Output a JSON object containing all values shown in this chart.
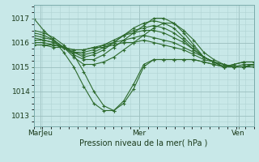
{
  "bg_color": "#c8e8e8",
  "plot_bg_color": "#c8e8e8",
  "line_color": "#2d6a2d",
  "grid_major_color": "#9bbfbf",
  "grid_minor_color": "#b0d4d4",
  "xlabel": "Pression niveau de la mer( hPa )",
  "yticks": [
    1013,
    1014,
    1015,
    1016,
    1017
  ],
  "ylim": [
    1012.55,
    1017.55
  ],
  "xlim": [
    0.0,
    1.0
  ],
  "xtick_labels": [
    "MarJeu",
    "Mer",
    "Ven"
  ],
  "xtick_positions": [
    0.03,
    0.48,
    0.93
  ],
  "series": [
    [
      1017.0,
      1016.5,
      1016.1,
      1015.6,
      1015.0,
      1014.2,
      1013.5,
      1013.2,
      1013.2,
      1013.6,
      1014.3,
      1015.1,
      1015.3,
      1015.3,
      1015.3,
      1015.3,
      1015.3,
      1015.2,
      1015.1,
      1015.0,
      1015.1,
      1015.2,
      1015.2
    ],
    [
      1016.5,
      1016.4,
      1016.2,
      1015.9,
      1015.5,
      1014.8,
      1014.0,
      1013.4,
      1013.2,
      1013.5,
      1014.1,
      1015.0,
      1015.3,
      1015.3,
      1015.3,
      1015.3,
      1015.3,
      1015.2,
      1015.1,
      1015.0,
      1015.1,
      1015.2,
      1015.2
    ],
    [
      1016.4,
      1016.3,
      1016.1,
      1015.8,
      1015.4,
      1015.1,
      1015.1,
      1015.2,
      1015.4,
      1015.7,
      1016.0,
      1016.3,
      1016.6,
      1016.8,
      1016.8,
      1016.5,
      1016.1,
      1015.6,
      1015.3,
      1015.1,
      1015.0,
      1015.0,
      1015.1
    ],
    [
      1016.3,
      1016.2,
      1016.1,
      1015.8,
      1015.5,
      1015.3,
      1015.3,
      1015.5,
      1015.8,
      1016.1,
      1016.4,
      1016.7,
      1017.0,
      1017.0,
      1016.8,
      1016.4,
      1015.9,
      1015.4,
      1015.2,
      1015.0,
      1015.0,
      1015.0,
      1015.1
    ],
    [
      1016.2,
      1016.1,
      1016.0,
      1015.8,
      1015.6,
      1015.4,
      1015.5,
      1015.7,
      1016.0,
      1016.3,
      1016.6,
      1016.8,
      1016.9,
      1016.8,
      1016.6,
      1016.2,
      1015.8,
      1015.4,
      1015.2,
      1015.0,
      1015.0,
      1015.0,
      1015.1
    ],
    [
      1016.1,
      1016.1,
      1016.0,
      1015.8,
      1015.6,
      1015.5,
      1015.6,
      1015.8,
      1016.0,
      1016.3,
      1016.5,
      1016.6,
      1016.7,
      1016.6,
      1016.4,
      1016.1,
      1015.7,
      1015.4,
      1015.2,
      1015.0,
      1015.0,
      1015.0,
      1015.1
    ],
    [
      1016.0,
      1016.0,
      1015.9,
      1015.8,
      1015.6,
      1015.6,
      1015.7,
      1015.9,
      1016.1,
      1016.3,
      1016.4,
      1016.5,
      1016.5,
      1016.4,
      1016.2,
      1016.0,
      1015.7,
      1015.4,
      1015.2,
      1015.0,
      1015.0,
      1015.1,
      1015.1
    ],
    [
      1015.9,
      1015.9,
      1015.9,
      1015.8,
      1015.7,
      1015.7,
      1015.8,
      1015.9,
      1016.0,
      1016.1,
      1016.2,
      1016.3,
      1016.2,
      1016.1,
      1016.0,
      1015.8,
      1015.6,
      1015.4,
      1015.2,
      1015.1,
      1015.0,
      1015.0,
      1015.1
    ],
    [
      1015.9,
      1015.9,
      1015.8,
      1015.8,
      1015.7,
      1015.7,
      1015.8,
      1015.8,
      1015.9,
      1016.0,
      1016.0,
      1016.1,
      1016.0,
      1015.9,
      1015.8,
      1015.7,
      1015.5,
      1015.3,
      1015.2,
      1015.1,
      1015.0,
      1015.0,
      1015.0
    ]
  ]
}
